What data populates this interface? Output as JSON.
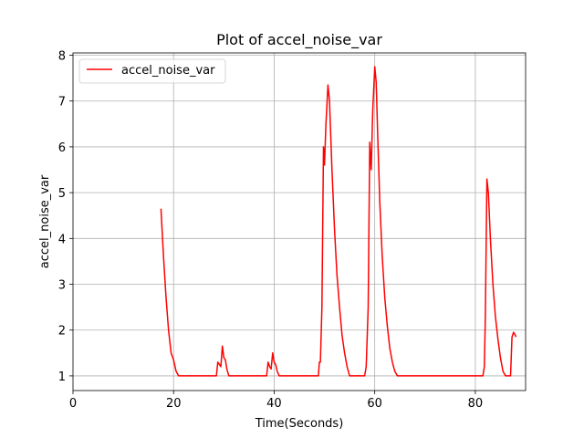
{
  "chart_data": {
    "type": "line",
    "title": "Plot of accel_noise_var",
    "xlabel": "Time(Seconds)",
    "ylabel": "accel_noise_var",
    "xlim": [
      0,
      90
    ],
    "ylim": [
      0.68,
      8.05
    ],
    "xticks": [
      0,
      20,
      40,
      60,
      80
    ],
    "yticks": [
      1,
      2,
      3,
      4,
      5,
      6,
      7,
      8
    ],
    "grid": true,
    "legend_position": "upper-left",
    "series": [
      {
        "name": "accel_noise_var",
        "color": "#ff0000",
        "x": [
          17.5,
          18.0,
          18.5,
          19.0,
          19.5,
          20.0,
          20.5,
          21.0,
          21.2,
          22.0,
          25.0,
          28.5,
          28.8,
          29.1,
          29.4,
          29.7,
          30.0,
          30.3,
          30.6,
          31.0,
          34.0,
          38.5,
          38.8,
          39.1,
          39.4,
          39.7,
          40.0,
          40.3,
          40.6,
          41.0,
          44.0,
          48.8,
          49.0,
          49.2,
          49.5,
          49.8,
          50.0,
          50.3,
          50.7,
          51.0,
          51.5,
          52.0,
          52.5,
          53.0,
          53.5,
          54.0,
          54.5,
          55.0,
          55.5,
          56.0,
          57.0,
          58.0,
          58.3,
          58.7,
          59.0,
          59.3,
          59.6,
          60.0,
          60.3,
          60.6,
          61.0,
          61.5,
          62.0,
          62.5,
          63.0,
          63.5,
          64.0,
          64.5,
          65.0,
          66.0,
          70.0,
          75.0,
          80.0,
          81.5,
          81.8,
          82.0,
          82.3,
          82.6,
          83.0,
          83.5,
          84.0,
          84.5,
          85.0,
          85.5,
          86.0,
          86.5,
          87.0,
          87.3,
          87.6,
          87.9,
          88.1
        ],
        "y": [
          4.65,
          3.6,
          2.7,
          2.0,
          1.5,
          1.35,
          1.1,
          1.0,
          1.0,
          1.0,
          1.0,
          1.0,
          1.3,
          1.25,
          1.2,
          1.65,
          1.4,
          1.35,
          1.15,
          1.0,
          1.0,
          1.0,
          1.3,
          1.2,
          1.15,
          1.5,
          1.3,
          1.25,
          1.1,
          1.0,
          1.0,
          1.0,
          1.3,
          1.3,
          2.5,
          6.0,
          5.6,
          6.5,
          7.35,
          7.0,
          5.5,
          4.2,
          3.2,
          2.5,
          1.9,
          1.5,
          1.2,
          1.0,
          1.0,
          1.0,
          1.0,
          1.0,
          1.2,
          2.5,
          6.1,
          5.5,
          6.8,
          7.75,
          7.4,
          6.2,
          4.8,
          3.6,
          2.7,
          2.1,
          1.6,
          1.3,
          1.1,
          1.0,
          1.0,
          1.0,
          1.0,
          1.0,
          1.0,
          1.0,
          1.2,
          2.3,
          5.3,
          5.0,
          4.0,
          3.0,
          2.3,
          1.8,
          1.4,
          1.1,
          1.0,
          1.0,
          1.0,
          1.85,
          1.95,
          1.9,
          1.85
        ]
      }
    ]
  }
}
